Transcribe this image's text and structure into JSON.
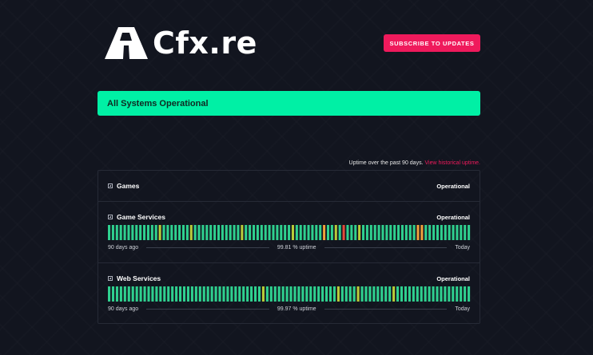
{
  "header": {
    "logo_text": "Cfx.re",
    "subscribe_label": "SUBSCRIBE TO UPDATES"
  },
  "status_banner": "All Systems Operational",
  "uptime_note": {
    "text": "Uptime over the past 90 days.",
    "link": "View historical uptime."
  },
  "colors": {
    "accent": "#ef1a5c",
    "operational": "#2fd08f",
    "minor": "#b9cc3a",
    "partial": "#f0a23c",
    "major": "#e44b3a",
    "banner": "#00f0a5"
  },
  "components": [
    {
      "name": "Games",
      "status": "Operational"
    },
    {
      "name": "Game Services",
      "status": "Operational",
      "days_left": "90 days ago",
      "uptime": "99.81 % uptime",
      "days_right": "Today",
      "day_status": "gggggggggggggygggggggyggggggggggggyggggggggggggygggggggoggygrgggyggggggggggggggoogggggggggggg"
    },
    {
      "name": "Web Services",
      "status": "Operational",
      "days_left": "90 days ago",
      "uptime": "99.97 % uptime",
      "days_right": "Today",
      "day_status": "gggggggggggggggggggggggggggggggggggggggyggggggggggggggggggyggggyggggggggyggggggggggggggggggg"
    }
  ]
}
